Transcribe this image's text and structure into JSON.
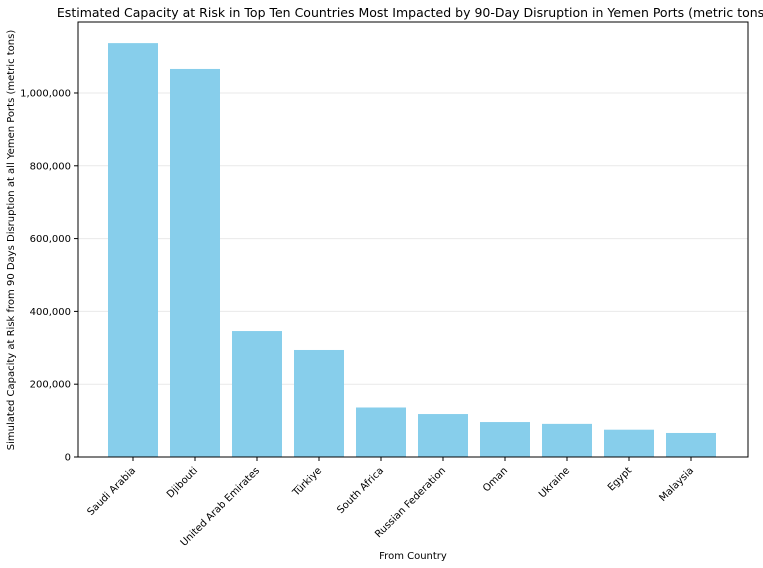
{
  "chart_data": {
    "type": "bar",
    "title": "Estimated Capacity at Risk in Top Ten Countries Most Impacted by 90-Day Disruption in Yemen Ports (metric tons)",
    "xlabel": "From Country",
    "ylabel": "Simulated Capacity at Risk from 90 Days Disruption at all Yemen Ports (metric tons)",
    "categories": [
      "Saudi Arabia",
      "Djibouti",
      "United Arab Emirates",
      "Türkiye",
      "South Africa",
      "Russian Federation",
      "Oman",
      "Ukraine",
      "Egypt",
      "Malaysia"
    ],
    "values": [
      1137000,
      1066000,
      346000,
      294000,
      136000,
      118000,
      96000,
      91000,
      75000,
      66000
    ],
    "ylim": [
      0,
      1195000
    ],
    "yticks": [
      0,
      200000,
      400000,
      600000,
      800000,
      1000000
    ],
    "ytick_labels": [
      "0",
      "200,000",
      "400,000",
      "600,000",
      "800,000",
      "1,000,000"
    ],
    "grid": "horizontal",
    "colors": {
      "bar": "#87ceeb"
    }
  }
}
